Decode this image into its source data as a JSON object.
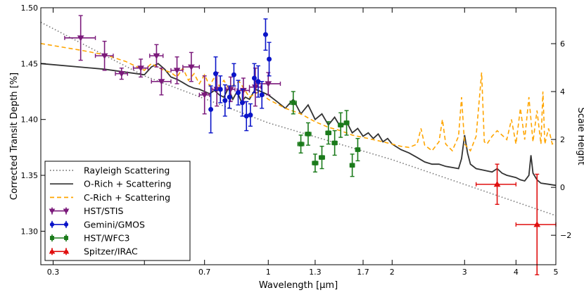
{
  "chart_data": {
    "type": "scatter",
    "title": "",
    "xlabel": "Wavelength [μm]",
    "ylabel": "Corrected Transit Depth [%]",
    "y2label": "Scale Height",
    "xscale": "log",
    "xlim": [
      0.28,
      5.0
    ],
    "ylim": [
      1.27,
      1.5
    ],
    "y2lim": [
      -3.23,
      7.5
    ],
    "xticks": [
      0.3,
      0.5,
      0.7,
      1,
      1.3,
      1.7,
      2,
      3,
      4,
      5
    ],
    "xtick_labels": [
      "0.3",
      "",
      "0.7",
      "1",
      "1.3",
      "1.7",
      "2",
      "3",
      "4",
      "5"
    ],
    "yticks": [
      1.3,
      1.35,
      1.4,
      1.45,
      1.5
    ],
    "ytick_labels": [
      "1.30",
      "1.35",
      "1.40",
      "1.45",
      "1.50"
    ],
    "y2ticks": [
      -2,
      0,
      2,
      4,
      6
    ],
    "y2tick_labels": [
      "−2",
      "0",
      "2",
      "4",
      "6"
    ],
    "legend_position": "lower-left",
    "lines": [
      {
        "name": "Rayleigh Scattering",
        "style": "dotted",
        "color": "#777777",
        "x": [
          0.28,
          0.5,
          1.0,
          2.0,
          5.0
        ],
        "y": [
          1.487,
          1.439,
          1.397,
          1.364,
          1.314
        ]
      },
      {
        "name": "O-Rich + Scattering",
        "style": "solid",
        "color": "#333333",
        "x": [
          0.28,
          0.4,
          0.5,
          0.52,
          0.54,
          0.56,
          0.58,
          0.6,
          0.62,
          0.64,
          0.66,
          0.68,
          0.7,
          0.72,
          0.74,
          0.76,
          0.78,
          0.8,
          0.82,
          0.84,
          0.86,
          0.88,
          0.9,
          0.93,
          0.96,
          1.0,
          1.05,
          1.1,
          1.15,
          1.2,
          1.25,
          1.3,
          1.35,
          1.4,
          1.45,
          1.5,
          1.55,
          1.6,
          1.65,
          1.7,
          1.75,
          1.8,
          1.85,
          1.9,
          1.95,
          2.0,
          2.1,
          2.2,
          2.3,
          2.4,
          2.5,
          2.6,
          2.7,
          2.8,
          2.9,
          2.95,
          3.0,
          3.05,
          3.1,
          3.2,
          3.3,
          3.4,
          3.5,
          3.6,
          3.7,
          3.8,
          3.9,
          4.0,
          4.1,
          4.2,
          4.3,
          4.35,
          4.4,
          4.5,
          4.6,
          4.8,
          5.0
        ],
        "y": [
          1.45,
          1.445,
          1.44,
          1.447,
          1.45,
          1.445,
          1.438,
          1.436,
          1.433,
          1.43,
          1.428,
          1.427,
          1.425,
          1.423,
          1.426,
          1.422,
          1.42,
          1.428,
          1.418,
          1.425,
          1.416,
          1.42,
          1.418,
          1.427,
          1.425,
          1.422,
          1.416,
          1.41,
          1.418,
          1.405,
          1.413,
          1.4,
          1.405,
          1.395,
          1.402,
          1.393,
          1.398,
          1.388,
          1.392,
          1.385,
          1.388,
          1.383,
          1.387,
          1.38,
          1.383,
          1.378,
          1.373,
          1.37,
          1.366,
          1.362,
          1.36,
          1.36,
          1.358,
          1.357,
          1.356,
          1.365,
          1.386,
          1.37,
          1.36,
          1.356,
          1.355,
          1.354,
          1.353,
          1.356,
          1.352,
          1.35,
          1.349,
          1.348,
          1.346,
          1.345,
          1.35,
          1.368,
          1.352,
          1.346,
          1.343,
          1.342,
          1.341
        ]
      },
      {
        "name": "C-Rich + Scattering",
        "style": "dashed",
        "color": "#ffa500",
        "x": [
          0.28,
          0.35,
          0.4,
          0.45,
          0.5,
          0.52,
          0.55,
          0.58,
          0.6,
          0.62,
          0.64,
          0.66,
          0.68,
          0.7,
          0.72,
          0.74,
          0.76,
          0.78,
          0.8,
          0.85,
          0.9,
          0.95,
          1.0,
          1.1,
          1.2,
          1.3,
          1.4,
          1.5,
          1.6,
          1.7,
          1.8,
          1.9,
          2.0,
          2.1,
          2.2,
          2.3,
          2.35,
          2.4,
          2.5,
          2.6,
          2.65,
          2.7,
          2.8,
          2.9,
          2.95,
          3.0,
          3.1,
          3.2,
          3.3,
          3.35,
          3.4,
          3.5,
          3.6,
          3.7,
          3.8,
          3.9,
          4.0,
          4.1,
          4.2,
          4.3,
          4.4,
          4.5,
          4.6,
          4.65,
          4.7,
          4.8,
          4.9,
          5.0
        ],
        "y": [
          1.468,
          1.462,
          1.458,
          1.452,
          1.444,
          1.45,
          1.445,
          1.442,
          1.438,
          1.446,
          1.435,
          1.441,
          1.432,
          1.44,
          1.43,
          1.438,
          1.43,
          1.435,
          1.428,
          1.434,
          1.42,
          1.425,
          1.418,
          1.41,
          1.405,
          1.398,
          1.393,
          1.39,
          1.386,
          1.384,
          1.382,
          1.38,
          1.378,
          1.376,
          1.375,
          1.378,
          1.392,
          1.377,
          1.372,
          1.38,
          1.4,
          1.378,
          1.372,
          1.385,
          1.42,
          1.378,
          1.372,
          1.385,
          1.442,
          1.38,
          1.378,
          1.385,
          1.39,
          1.386,
          1.382,
          1.4,
          1.378,
          1.41,
          1.382,
          1.42,
          1.38,
          1.408,
          1.378,
          1.425,
          1.378,
          1.392,
          1.378,
          1.38
        ]
      }
    ],
    "series": [
      {
        "name": "HST/STIS",
        "color": "#7b1a7b",
        "marker": "triangle-down",
        "points": [
          {
            "x": 0.35,
            "y": 1.473,
            "xerr": 0.03,
            "yerr": 0.02
          },
          {
            "x": 0.4,
            "y": 1.457,
            "xerr": 0.02,
            "yerr": 0.013
          },
          {
            "x": 0.44,
            "y": 1.441,
            "xerr": 0.015,
            "yerr": 0.005
          },
          {
            "x": 0.49,
            "y": 1.446,
            "xerr": 0.02,
            "yerr": 0.008
          },
          {
            "x": 0.535,
            "y": 1.457,
            "xerr": 0.02,
            "yerr": 0.01
          },
          {
            "x": 0.55,
            "y": 1.434,
            "xerr": 0.03,
            "yerr": 0.012
          },
          {
            "x": 0.6,
            "y": 1.444,
            "xerr": 0.02,
            "yerr": 0.012
          },
          {
            "x": 0.65,
            "y": 1.447,
            "xerr": 0.03,
            "yerr": 0.013
          },
          {
            "x": 0.7,
            "y": 1.422,
            "xerr": 0.02,
            "yerr": 0.017
          },
          {
            "x": 0.75,
            "y": 1.427,
            "xerr": 0.02,
            "yerr": 0.015
          },
          {
            "x": 0.81,
            "y": 1.427,
            "xerr": 0.02,
            "yerr": 0.011
          },
          {
            "x": 0.87,
            "y": 1.426,
            "xerr": 0.03,
            "yerr": 0.011
          },
          {
            "x": 0.93,
            "y": 1.429,
            "xerr": 0.03,
            "yerr": 0.017
          },
          {
            "x": 1.0,
            "y": 1.432,
            "xerr": 0.07,
            "yerr": 0.01
          }
        ]
      },
      {
        "name": "Gemini/GMOS",
        "color": "#0a14c8",
        "marker": "circle",
        "points": [
          {
            "x": 0.725,
            "y": 1.409,
            "xerr": 0.0,
            "yerr": 0.021
          },
          {
            "x": 0.745,
            "y": 1.441,
            "xerr": 0.0,
            "yerr": 0.015
          },
          {
            "x": 0.765,
            "y": 1.427,
            "xerr": 0.0,
            "yerr": 0.012
          },
          {
            "x": 0.785,
            "y": 1.417,
            "xerr": 0.0,
            "yerr": 0.014
          },
          {
            "x": 0.805,
            "y": 1.42,
            "xerr": 0.0,
            "yerr": 0.01
          },
          {
            "x": 0.825,
            "y": 1.44,
            "xerr": 0.0,
            "yerr": 0.01
          },
          {
            "x": 0.845,
            "y": 1.424,
            "xerr": 0.0,
            "yerr": 0.011
          },
          {
            "x": 0.865,
            "y": 1.415,
            "xerr": 0.0,
            "yerr": 0.012
          },
          {
            "x": 0.885,
            "y": 1.403,
            "xerr": 0.0,
            "yerr": 0.013
          },
          {
            "x": 0.905,
            "y": 1.404,
            "xerr": 0.0,
            "yerr": 0.01
          },
          {
            "x": 0.925,
            "y": 1.437,
            "xerr": 0.0,
            "yerr": 0.013
          },
          {
            "x": 0.945,
            "y": 1.434,
            "xerr": 0.0,
            "yerr": 0.014
          },
          {
            "x": 0.965,
            "y": 1.422,
            "xerr": 0.0,
            "yerr": 0.012
          },
          {
            "x": 0.985,
            "y": 1.476,
            "xerr": 0.0,
            "yerr": 0.014
          },
          {
            "x": 1.005,
            "y": 1.454,
            "xerr": 0.0,
            "yerr": 0.015
          }
        ]
      },
      {
        "name": "HST/WFC3",
        "color": "#1a7a1a",
        "marker": "square",
        "points": [
          {
            "x": 1.15,
            "y": 1.415,
            "xerr": 0.02,
            "yerr": 0.01
          },
          {
            "x": 1.2,
            "y": 1.378,
            "xerr": 0.02,
            "yerr": 0.008
          },
          {
            "x": 1.25,
            "y": 1.387,
            "xerr": 0.02,
            "yerr": 0.01
          },
          {
            "x": 1.3,
            "y": 1.361,
            "xerr": 0.02,
            "yerr": 0.008
          },
          {
            "x": 1.35,
            "y": 1.366,
            "xerr": 0.02,
            "yerr": 0.01
          },
          {
            "x": 1.4,
            "y": 1.388,
            "xerr": 0.02,
            "yerr": 0.01
          },
          {
            "x": 1.45,
            "y": 1.379,
            "xerr": 0.02,
            "yerr": 0.011
          },
          {
            "x": 1.5,
            "y": 1.395,
            "xerr": 0.02,
            "yerr": 0.011
          },
          {
            "x": 1.55,
            "y": 1.397,
            "xerr": 0.02,
            "yerr": 0.011
          },
          {
            "x": 1.6,
            "y": 1.359,
            "xerr": 0.02,
            "yerr": 0.01
          },
          {
            "x": 1.65,
            "y": 1.373,
            "xerr": 0.02,
            "yerr": 0.01
          }
        ]
      },
      {
        "name": "Spitzer/IRAC",
        "color": "#e01010",
        "marker": "triangle-up",
        "points": [
          {
            "x": 3.6,
            "y": 1.342,
            "xerr": 0.4,
            "yerr": 0.018
          },
          {
            "x": 4.5,
            "y": 1.306,
            "xerr": 0.5,
            "yerr": 0.045
          }
        ]
      }
    ]
  }
}
